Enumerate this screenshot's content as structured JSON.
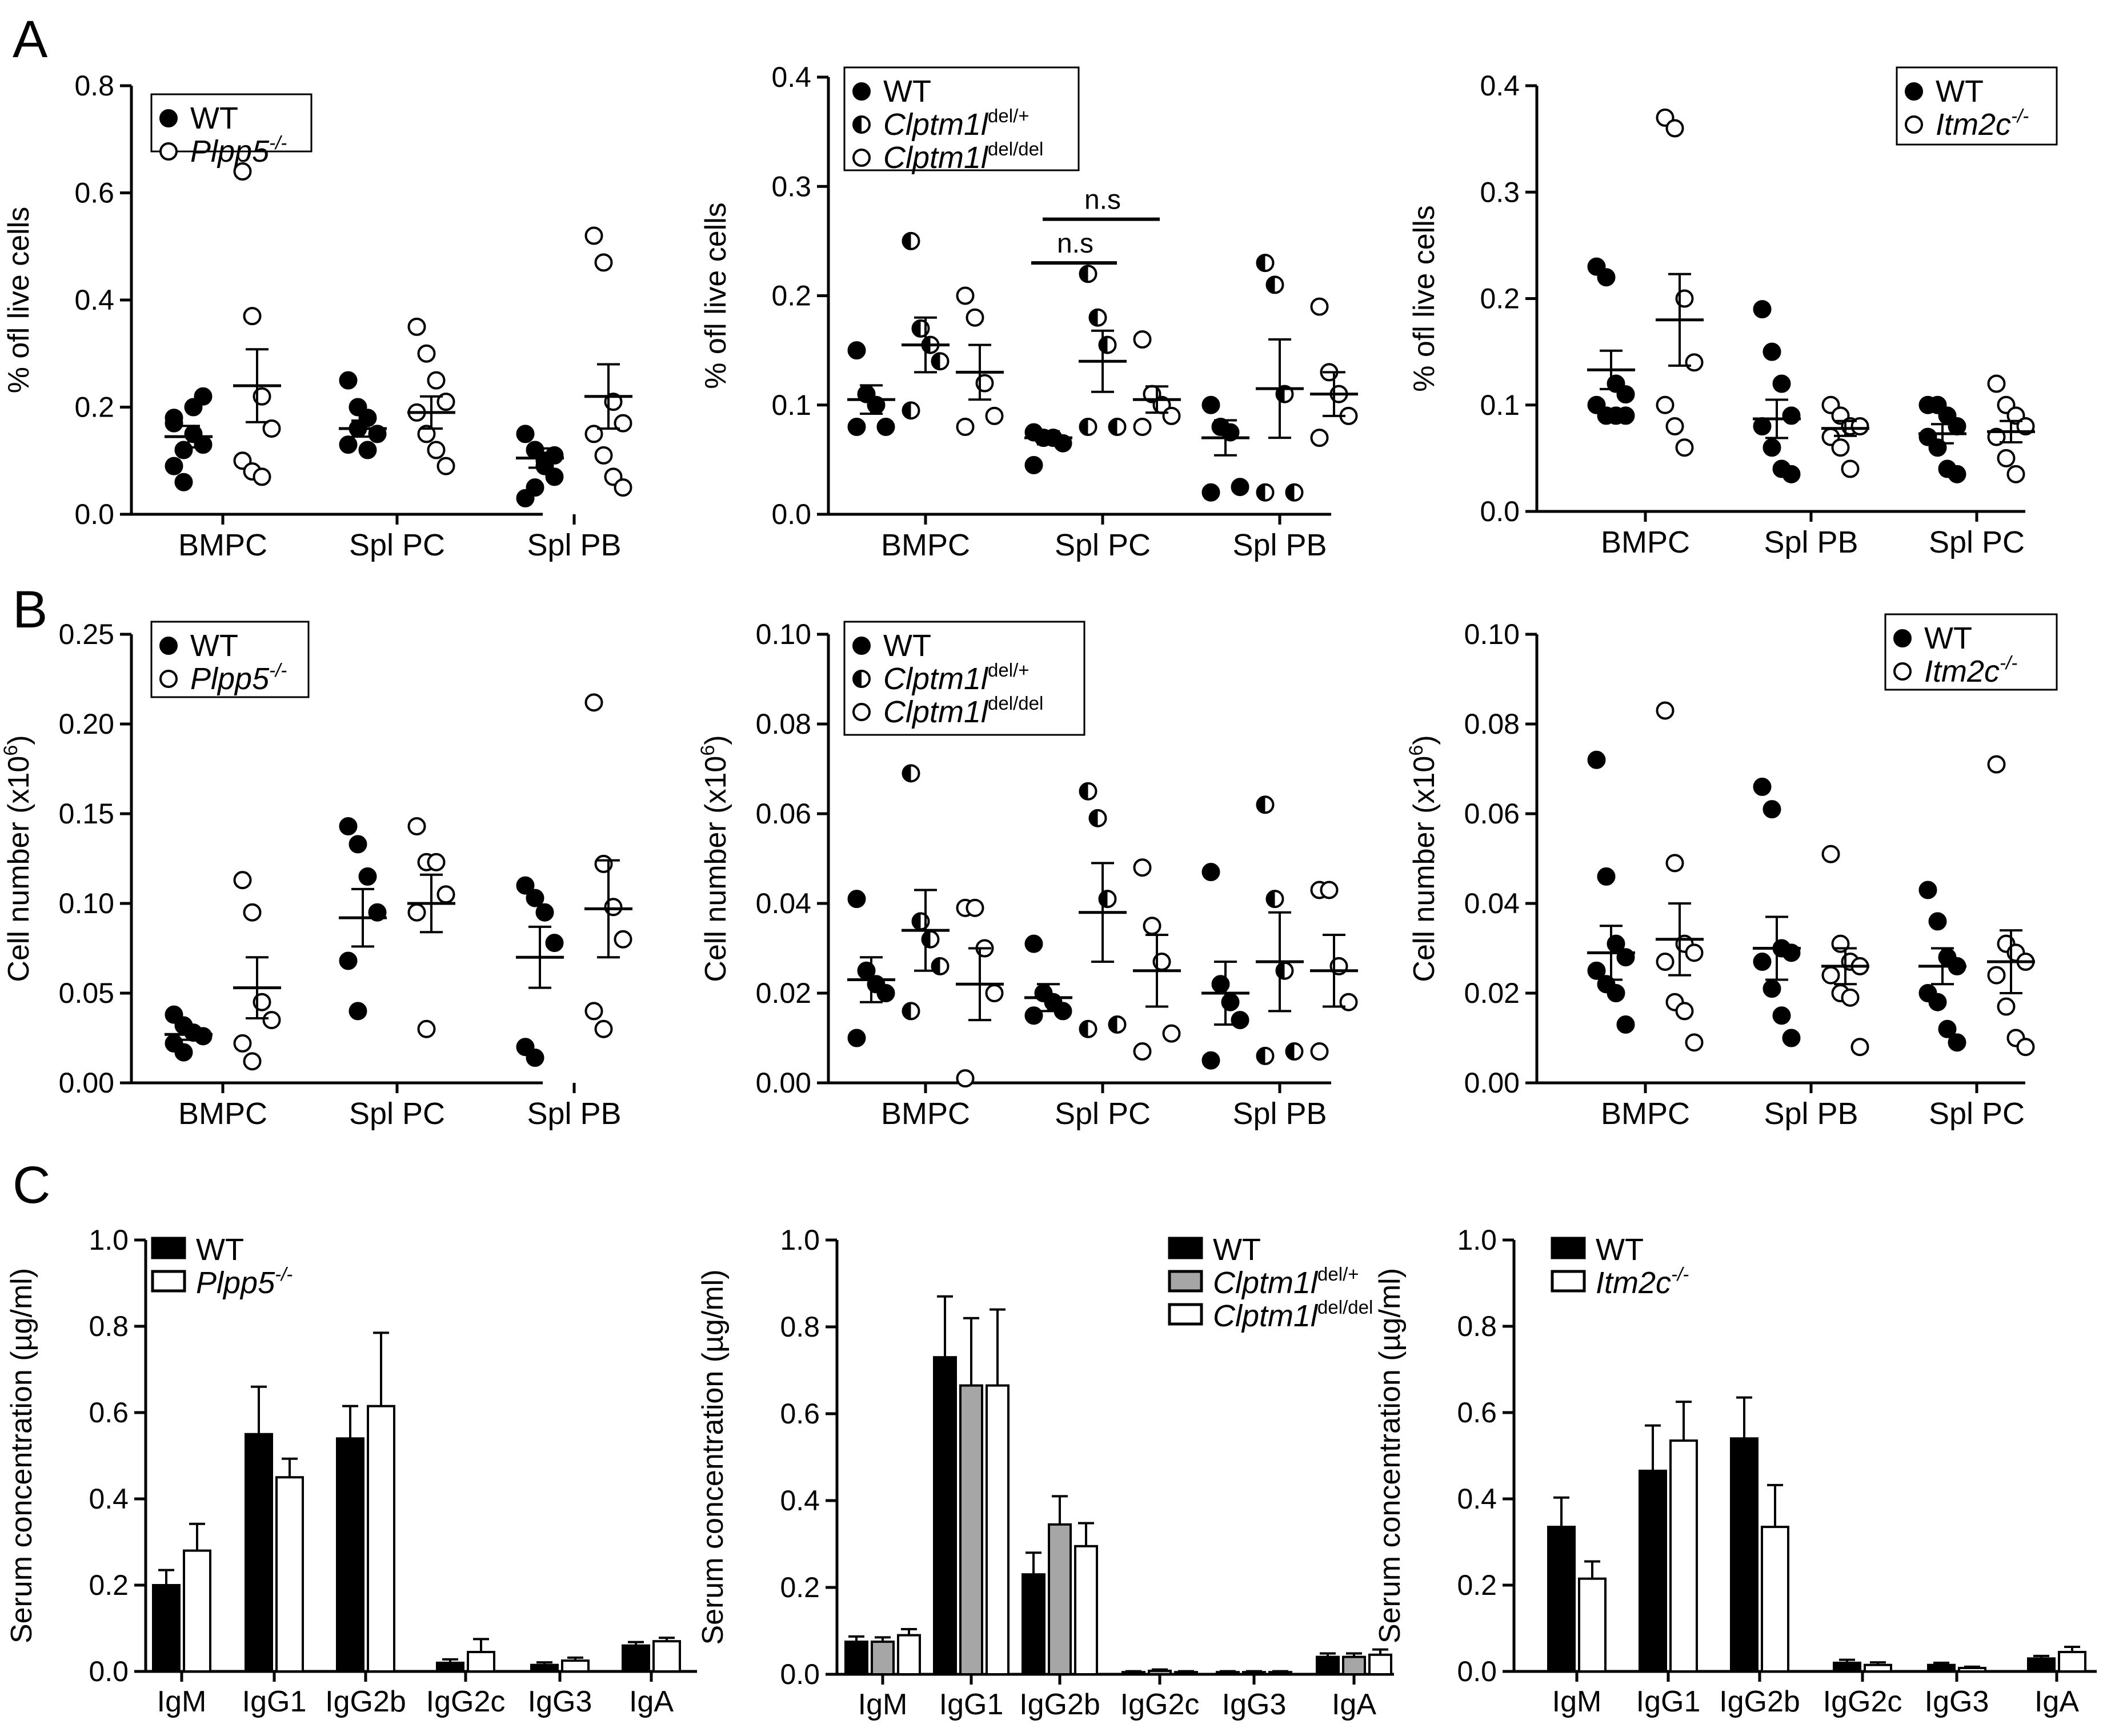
{
  "panel_letters": [
    "A",
    "B",
    "C"
  ],
  "chart_data": [
    {
      "panel": "A",
      "type": "scatter",
      "ylabel": "% ofl live cells",
      "ylim": [
        0,
        0.8
      ],
      "yticks": [
        "0.0",
        "0.2",
        "0.4",
        "0.6",
        "0.8"
      ],
      "categories": [
        "BMPC",
        "Spl PC",
        "Spl PB"
      ],
      "legend_placement": "top-left",
      "series": [
        {
          "name": "WT",
          "sup": "",
          "marker": "filled",
          "points": [
            [
              0.18,
              0.12,
              0.15,
              0.13,
              0.09,
              0.06,
              0.2,
              0.22,
              0.17
            ],
            [
              0.25,
              0.2,
              0.18,
              0.15,
              0.13,
              0.16,
              0.12
            ],
            [
              0.15,
              0.12,
              0.09,
              0.07,
              0.03,
              0.05,
              0.1,
              0.11
            ]
          ],
          "mean": [
            0.145,
            0.16,
            0.105
          ],
          "sem": [
            0.02,
            0.015,
            0.018
          ]
        },
        {
          "name": "Plpp5",
          "sup": "-/-",
          "marker": "open",
          "points": [
            [
              0.64,
              0.37,
              0.22,
              0.16,
              0.1,
              0.08,
              0.07
            ],
            [
              0.35,
              0.3,
              0.25,
              0.21,
              0.19,
              0.15,
              0.12,
              0.09
            ],
            [
              0.52,
              0.47,
              0.21,
              0.17,
              0.15,
              0.11,
              0.07,
              0.05
            ]
          ],
          "mean": [
            0.24,
            0.19,
            0.22
          ],
          "sem": [
            0.068,
            0.03,
            0.06
          ]
        }
      ]
    },
    {
      "panel": "A",
      "type": "scatter",
      "ylabel": "% ofl live cells",
      "ylim": [
        0,
        0.4
      ],
      "yticks": [
        "0.0",
        "0.1",
        "0.2",
        "0.3",
        "0.4"
      ],
      "categories": [
        "BMPC",
        "Spl PC",
        "Spl PB"
      ],
      "legend_placement": "top-left",
      "annotations": [
        "n.s",
        "n.s"
      ],
      "series": [
        {
          "name": "WT",
          "sup": "",
          "marker": "filled",
          "points": [
            [
              0.15,
              0.11,
              0.1,
              0.08,
              0.08
            ],
            [
              0.075,
              0.07,
              0.07,
              0.065,
              0.045
            ],
            [
              0.1,
              0.08,
              0.075,
              0.025,
              0.02
            ]
          ],
          "mean": [
            0.105,
            0.07,
            0.07
          ],
          "sem": [
            0.013,
            0.006,
            0.016
          ]
        },
        {
          "name": "Clptm1l",
          "sup": "del/+",
          "marker": "half",
          "points": [
            [
              0.25,
              0.17,
              0.155,
              0.14,
              0.095
            ],
            [
              0.22,
              0.18,
              0.155,
              0.08,
              0.08
            ],
            [
              0.23,
              0.21,
              0.11,
              0.02,
              0.02
            ]
          ],
          "mean": [
            0.155,
            0.14,
            0.115
          ],
          "sem": [
            0.025,
            0.028,
            0.045
          ]
        },
        {
          "name": "Clptm1l",
          "sup": "del/del",
          "marker": "open",
          "points": [
            [
              0.2,
              0.18,
              0.12,
              0.09,
              0.08
            ],
            [
              0.16,
              0.11,
              0.1,
              0.09,
              0.08
            ],
            [
              0.19,
              0.13,
              0.11,
              0.09,
              0.07
            ]
          ],
          "mean": [
            0.13,
            0.105,
            0.11
          ],
          "sem": [
            0.025,
            0.012,
            0.02
          ]
        }
      ]
    },
    {
      "panel": "A",
      "type": "scatter",
      "ylabel": "% ofl live cells",
      "ylim": [
        0,
        0.4
      ],
      "yticks": [
        "0.0",
        "0.1",
        "0.2",
        "0.3",
        "0.4"
      ],
      "categories": [
        "BMPC",
        "Spl PB",
        "Spl PC"
      ],
      "legend_placement": "top-right",
      "series": [
        {
          "name": "WT",
          "sup": "",
          "marker": "filled",
          "points": [
            [
              0.23,
              0.22,
              0.12,
              0.11,
              0.1,
              0.09,
              0.09,
              0.09
            ],
            [
              0.19,
              0.15,
              0.12,
              0.09,
              0.08,
              0.06,
              0.04,
              0.035
            ],
            [
              0.1,
              0.1,
              0.09,
              0.08,
              0.07,
              0.06,
              0.04,
              0.035
            ]
          ],
          "mean": [
            0.133,
            0.087,
            0.073
          ],
          "sem": [
            0.018,
            0.018,
            0.009
          ]
        },
        {
          "name": "Itm2c",
          "sup": "-/-",
          "marker": "open",
          "points": [
            [
              0.37,
              0.36,
              0.2,
              0.14,
              0.1,
              0.08,
              0.06
            ],
            [
              0.1,
              0.09,
              0.08,
              0.08,
              0.07,
              0.06,
              0.04
            ],
            [
              0.12,
              0.1,
              0.09,
              0.08,
              0.07,
              0.05,
              0.035
            ]
          ],
          "mean": [
            0.18,
            0.078,
            0.075
          ],
          "sem": [
            0.043,
            0.007,
            0.01
          ]
        }
      ]
    },
    {
      "panel": "B",
      "type": "scatter",
      "ylabel": "Cell number (x10",
      "ylabel_sup": "6",
      "ylabel_end": ")",
      "ylim": [
        0,
        0.25
      ],
      "yticks": [
        "0.00",
        "0.05",
        "0.10",
        "0.15",
        "0.20",
        "0.25"
      ],
      "categories": [
        "BMPC",
        "Spl PC",
        "Spl PB"
      ],
      "legend_placement": "top-left",
      "series": [
        {
          "name": "WT",
          "sup": "",
          "marker": "filled",
          "points": [
            [
              0.038,
              0.032,
              0.028,
              0.026,
              0.022,
              0.017
            ],
            [
              0.143,
              0.133,
              0.115,
              0.095,
              0.068,
              0.04
            ],
            [
              0.11,
              0.103,
              0.095,
              0.078,
              0.02,
              0.014
            ]
          ],
          "mean": [
            0.027,
            0.092,
            0.07
          ],
          "sem": [
            0.003,
            0.016,
            0.017
          ]
        },
        {
          "name": "Plpp5",
          "sup": "-/-",
          "marker": "open",
          "points": [
            [
              0.113,
              0.095,
              0.045,
              0.035,
              0.022,
              0.012
            ],
            [
              0.143,
              0.123,
              0.123,
              0.105,
              0.095,
              0.03
            ],
            [
              0.212,
              0.122,
              0.098,
              0.08,
              0.04,
              0.03
            ]
          ],
          "mean": [
            0.053,
            0.1,
            0.097
          ],
          "sem": [
            0.017,
            0.016,
            0.027
          ]
        }
      ]
    },
    {
      "panel": "B",
      "type": "scatter",
      "ylabel": "Cell number (x10",
      "ylabel_sup": "6",
      "ylabel_end": ")",
      "ylim": [
        0,
        0.1
      ],
      "yticks": [
        "0.00",
        "0.02",
        "0.04",
        "0.06",
        "0.08",
        "0.10"
      ],
      "categories": [
        "BMPC",
        "Spl PC",
        "Spl PB"
      ],
      "legend_placement": "top-left",
      "series": [
        {
          "name": "WT",
          "sup": "",
          "marker": "filled",
          "points": [
            [
              0.041,
              0.025,
              0.022,
              0.02,
              0.01
            ],
            [
              0.031,
              0.02,
              0.018,
              0.016,
              0.015
            ],
            [
              0.047,
              0.022,
              0.018,
              0.014,
              0.005
            ]
          ],
          "mean": [
            0.023,
            0.019,
            0.02
          ],
          "sem": [
            0.005,
            0.003,
            0.007
          ]
        },
        {
          "name": "Clptm1l",
          "sup": "del/+",
          "marker": "half",
          "points": [
            [
              0.069,
              0.036,
              0.032,
              0.026,
              0.016
            ],
            [
              0.065,
              0.059,
              0.041,
              0.013,
              0.012
            ],
            [
              0.062,
              0.041,
              0.025,
              0.007,
              0.006
            ]
          ],
          "mean": [
            0.034,
            0.038,
            0.027
          ],
          "sem": [
            0.009,
            0.011,
            0.011
          ]
        },
        {
          "name": "Clptm1l",
          "sup": "del/del",
          "marker": "open",
          "points": [
            [
              0.039,
              0.039,
              0.03,
              0.02,
              0.001
            ],
            [
              0.048,
              0.035,
              0.027,
              0.011,
              0.007
            ],
            [
              0.043,
              0.043,
              0.026,
              0.018,
              0.007
            ]
          ],
          "mean": [
            0.022,
            0.025,
            0.025
          ],
          "sem": [
            0.008,
            0.008,
            0.008
          ]
        }
      ]
    },
    {
      "panel": "B",
      "type": "scatter",
      "ylabel": "Cell number (x10",
      "ylabel_sup": "6",
      "ylabel_end": ")",
      "ylim": [
        0,
        0.1
      ],
      "yticks": [
        "0.00",
        "0.02",
        "0.04",
        "0.06",
        "0.08",
        "0.10"
      ],
      "categories": [
        "BMPC",
        "Spl PB",
        "Spl PC"
      ],
      "legend_placement": "top-right",
      "series": [
        {
          "name": "WT",
          "sup": "",
          "marker": "filled",
          "points": [
            [
              0.072,
              0.046,
              0.031,
              0.028,
              0.025,
              0.022,
              0.02,
              0.013
            ],
            [
              0.066,
              0.061,
              0.03,
              0.029,
              0.027,
              0.021,
              0.015,
              0.01
            ],
            [
              0.043,
              0.036,
              0.028,
              0.026,
              0.02,
              0.018,
              0.012,
              0.009
            ]
          ],
          "mean": [
            0.029,
            0.03,
            0.026
          ],
          "sem": [
            0.006,
            0.007,
            0.004
          ]
        },
        {
          "name": "Itm2c",
          "sup": "-/-",
          "marker": "open",
          "points": [
            [
              0.083,
              0.049,
              0.031,
              0.029,
              0.027,
              0.018,
              0.016,
              0.009
            ],
            [
              0.051,
              0.031,
              0.027,
              0.026,
              0.024,
              0.02,
              0.019,
              0.008
            ],
            [
              0.071,
              0.031,
              0.029,
              0.027,
              0.024,
              0.017,
              0.01,
              0.008
            ]
          ],
          "mean": [
            0.032,
            0.026,
            0.027
          ],
          "sem": [
            0.008,
            0.004,
            0.007
          ]
        }
      ]
    },
    {
      "panel": "C",
      "type": "bar",
      "ylabel": "Serum concentration (µg/ml)",
      "ylim": [
        0,
        1.0
      ],
      "yticks": [
        "0.0",
        "0.2",
        "0.4",
        "0.6",
        "0.8",
        "1.0"
      ],
      "categories": [
        "IgM",
        "IgG1",
        "IgG2b",
        "IgG2c",
        "IgG3",
        "IgA"
      ],
      "legend_placement": "top-left",
      "series": [
        {
          "name": "WT",
          "sup": "",
          "fill": "#000000",
          "values": [
            0.2,
            0.55,
            0.54,
            0.02,
            0.015,
            0.06
          ],
          "err": [
            0.035,
            0.11,
            0.075,
            0.008,
            0.006,
            0.008
          ]
        },
        {
          "name": "Plpp5",
          "sup": "-/-",
          "fill": "#ffffff",
          "values": [
            0.28,
            0.45,
            0.615,
            0.045,
            0.025,
            0.07
          ],
          "err": [
            0.062,
            0.043,
            0.17,
            0.03,
            0.007,
            0.008
          ]
        }
      ]
    },
    {
      "panel": "C",
      "type": "bar",
      "ylabel": "Serum concentration (µg/ml)",
      "ylim": [
        0,
        1.0
      ],
      "yticks": [
        "0.0",
        "0.2",
        "0.4",
        "0.6",
        "0.8",
        "1.0"
      ],
      "categories": [
        "IgM",
        "IgG1",
        "IgG2b",
        "IgG2c",
        "IgG3",
        "IgA"
      ],
      "legend_placement": "top-right",
      "series": [
        {
          "name": "WT",
          "sup": "",
          "fill": "#000000",
          "values": [
            0.075,
            0.73,
            0.23,
            0.005,
            0.005,
            0.04
          ],
          "err": [
            0.012,
            0.14,
            0.05,
            0.002,
            0.002,
            0.008
          ]
        },
        {
          "name": "Clptm1l",
          "sup": "del/+",
          "fill": "#a6a6a6",
          "values": [
            0.075,
            0.665,
            0.345,
            0.008,
            0.005,
            0.04
          ],
          "err": [
            0.01,
            0.155,
            0.065,
            0.003,
            0.002,
            0.008
          ]
        },
        {
          "name": "Clptm1l",
          "sup": "del/del",
          "fill": "#ffffff",
          "values": [
            0.09,
            0.665,
            0.295,
            0.005,
            0.005,
            0.045
          ],
          "err": [
            0.014,
            0.175,
            0.053,
            0.002,
            0.002,
            0.012
          ]
        }
      ]
    },
    {
      "panel": "C",
      "type": "bar",
      "ylabel": "Serum concentration (µg/ml)",
      "ylim": [
        0,
        1.0
      ],
      "yticks": [
        "0.0",
        "0.2",
        "0.4",
        "0.6",
        "0.8",
        "1.0"
      ],
      "categories": [
        "IgM",
        "IgG1",
        "IgG2b",
        "IgG2c",
        "IgG3",
        "IgA"
      ],
      "legend_placement": "top-left",
      "series": [
        {
          "name": "WT",
          "sup": "",
          "fill": "#000000",
          "values": [
            0.335,
            0.465,
            0.54,
            0.02,
            0.015,
            0.03
          ],
          "err": [
            0.068,
            0.105,
            0.095,
            0.007,
            0.005,
            0.006
          ]
        },
        {
          "name": "Itm2c",
          "sup": "-/-",
          "fill": "#ffffff",
          "values": [
            0.215,
            0.535,
            0.335,
            0.015,
            0.008,
            0.045
          ],
          "err": [
            0.04,
            0.09,
            0.097,
            0.006,
            0.003,
            0.012
          ]
        }
      ]
    }
  ]
}
